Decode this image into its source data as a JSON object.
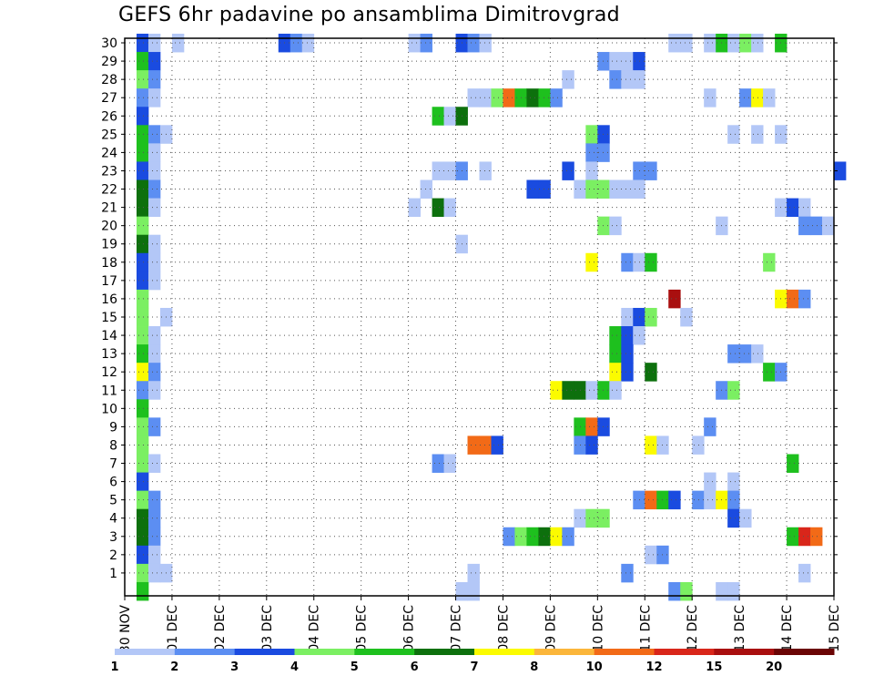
{
  "chart_data": {
    "type": "heatmap",
    "title": "GEFS 6hr padavine po ansamblima Dimitrovgrad",
    "xlabel": "",
    "ylabel": "",
    "ylim": [
      0,
      30
    ],
    "xlim": [
      0,
      15
    ],
    "x_ticks": [
      "30 NOV",
      "01 DEC",
      "02 DEC",
      "03 DEC",
      "04 DEC",
      "05 DEC",
      "06 DEC",
      "07 DEC",
      "08 DEC",
      "09 DEC",
      "10 DEC",
      "11 DEC",
      "12 DEC",
      "13 DEC",
      "14 DEC",
      "15 DEC"
    ],
    "y_ticks": [
      "1",
      "2",
      "3",
      "4",
      "5",
      "6",
      "7",
      "8",
      "9",
      "10",
      "11",
      "12",
      "13",
      "14",
      "15",
      "16",
      "17",
      "18",
      "19",
      "20",
      "21",
      "22",
      "23",
      "24",
      "25",
      "26",
      "27",
      "28",
      "29",
      "30"
    ],
    "grid": true,
    "legend": {
      "placement": "bottom",
      "labels": [
        "1",
        "2",
        "3",
        "4",
        "5",
        "6",
        "7",
        "8",
        "10",
        "12",
        "15",
        "20"
      ],
      "colors": [
        "#b3c7f7",
        "#5c8ef2",
        "#1a4be0",
        "#7bef62",
        "#1ec01e",
        "#0d700d",
        "#fbfb00",
        "#fbb63b",
        "#f26a17",
        "#d9261a",
        "#a90f0f",
        "#6b0505"
      ]
    },
    "cells_note": "each cell: [member 0-30, 6h step index from 30 NOV 00z, color level 1-12]",
    "cells": [
      [
        30,
        1,
        3
      ],
      [
        30,
        2,
        1
      ],
      [
        30,
        4,
        1
      ],
      [
        30,
        13,
        3
      ],
      [
        30,
        14,
        2
      ],
      [
        30,
        15,
        1
      ],
      [
        30,
        24,
        1
      ],
      [
        30,
        25,
        2
      ],
      [
        30,
        28,
        3
      ],
      [
        30,
        29,
        2
      ],
      [
        30,
        30,
        1
      ],
      [
        30,
        46,
        1
      ],
      [
        30,
        47,
        1
      ],
      [
        30,
        49,
        1
      ],
      [
        30,
        50,
        5
      ],
      [
        30,
        51,
        1
      ],
      [
        30,
        52,
        4
      ],
      [
        30,
        53,
        1
      ],
      [
        30,
        55,
        5
      ],
      [
        29,
        1,
        5
      ],
      [
        29,
        2,
        3
      ],
      [
        29,
        40,
        2
      ],
      [
        29,
        41,
        1
      ],
      [
        29,
        42,
        1
      ],
      [
        29,
        43,
        3
      ],
      [
        28,
        1,
        4
      ],
      [
        28,
        2,
        2
      ],
      [
        28,
        37,
        1
      ],
      [
        28,
        41,
        2
      ],
      [
        28,
        42,
        1
      ],
      [
        28,
        43,
        1
      ],
      [
        27,
        1,
        2
      ],
      [
        27,
        2,
        1
      ],
      [
        27,
        29,
        1
      ],
      [
        27,
        30,
        1
      ],
      [
        27,
        31,
        4
      ],
      [
        27,
        32,
        9
      ],
      [
        27,
        33,
        5
      ],
      [
        27,
        34,
        6
      ],
      [
        27,
        35,
        5
      ],
      [
        27,
        36,
        2
      ],
      [
        27,
        49,
        1
      ],
      [
        27,
        52,
        2
      ],
      [
        27,
        53,
        7
      ],
      [
        27,
        54,
        1
      ],
      [
        26,
        1,
        3
      ],
      [
        26,
        26,
        5
      ],
      [
        26,
        27,
        1
      ],
      [
        26,
        28,
        6
      ],
      [
        25,
        1,
        5
      ],
      [
        25,
        2,
        2
      ],
      [
        25,
        3,
        1
      ],
      [
        25,
        39,
        4
      ],
      [
        25,
        40,
        3
      ],
      [
        25,
        51,
        1
      ],
      [
        25,
        53,
        1
      ],
      [
        25,
        55,
        1
      ],
      [
        24,
        1,
        5
      ],
      [
        24,
        2,
        1
      ],
      [
        24,
        39,
        2
      ],
      [
        24,
        40,
        2
      ],
      [
        23,
        1,
        3
      ],
      [
        23,
        2,
        1
      ],
      [
        23,
        26,
        1
      ],
      [
        23,
        27,
        1
      ],
      [
        23,
        28,
        2
      ],
      [
        23,
        30,
        1
      ],
      [
        23,
        37,
        3
      ],
      [
        23,
        39,
        1
      ],
      [
        23,
        43,
        2
      ],
      [
        23,
        44,
        2
      ],
      [
        23,
        60,
        3
      ],
      [
        22,
        1,
        6
      ],
      [
        22,
        2,
        2
      ],
      [
        22,
        25,
        1
      ],
      [
        22,
        34,
        3
      ],
      [
        22,
        35,
        3
      ],
      [
        22,
        38,
        1
      ],
      [
        22,
        39,
        4
      ],
      [
        22,
        40,
        4
      ],
      [
        22,
        41,
        1
      ],
      [
        22,
        42,
        1
      ],
      [
        22,
        43,
        1
      ],
      [
        21,
        1,
        6
      ],
      [
        21,
        2,
        1
      ],
      [
        21,
        24,
        1
      ],
      [
        21,
        26,
        6
      ],
      [
        21,
        27,
        1
      ],
      [
        21,
        55,
        1
      ],
      [
        21,
        56,
        3
      ],
      [
        21,
        57,
        1
      ],
      [
        20,
        1,
        4
      ],
      [
        20,
        40,
        4
      ],
      [
        20,
        41,
        1
      ],
      [
        20,
        50,
        1
      ],
      [
        20,
        57,
        2
      ],
      [
        20,
        58,
        2
      ],
      [
        20,
        59,
        1
      ],
      [
        19,
        1,
        6
      ],
      [
        19,
        2,
        1
      ],
      [
        19,
        28,
        1
      ],
      [
        18,
        1,
        3
      ],
      [
        18,
        2,
        1
      ],
      [
        18,
        39,
        7
      ],
      [
        18,
        42,
        2
      ],
      [
        18,
        43,
        1
      ],
      [
        18,
        44,
        5
      ],
      [
        18,
        54,
        4
      ],
      [
        17,
        1,
        3
      ],
      [
        17,
        2,
        1
      ],
      [
        16,
        1,
        4
      ],
      [
        16,
        46,
        11
      ],
      [
        16,
        55,
        7
      ],
      [
        16,
        56,
        9
      ],
      [
        16,
        57,
        2
      ],
      [
        15,
        1,
        4
      ],
      [
        15,
        3,
        1
      ],
      [
        15,
        42,
        1
      ],
      [
        15,
        43,
        3
      ],
      [
        15,
        44,
        4
      ],
      [
        15,
        47,
        1
      ],
      [
        14,
        1,
        4
      ],
      [
        14,
        2,
        1
      ],
      [
        14,
        41,
        5
      ],
      [
        14,
        42,
        3
      ],
      [
        14,
        43,
        1
      ],
      [
        13,
        1,
        5
      ],
      [
        13,
        2,
        1
      ],
      [
        13,
        41,
        5
      ],
      [
        13,
        42,
        3
      ],
      [
        13,
        51,
        2
      ],
      [
        13,
        52,
        2
      ],
      [
        13,
        53,
        1
      ],
      [
        12,
        1,
        7
      ],
      [
        12,
        2,
        2
      ],
      [
        12,
        41,
        7
      ],
      [
        12,
        42,
        3
      ],
      [
        12,
        44,
        6
      ],
      [
        12,
        54,
        5
      ],
      [
        12,
        55,
        2
      ],
      [
        11,
        1,
        2
      ],
      [
        11,
        2,
        1
      ],
      [
        11,
        36,
        7
      ],
      [
        11,
        37,
        6
      ],
      [
        11,
        38,
        6
      ],
      [
        11,
        39,
        1
      ],
      [
        11,
        40,
        5
      ],
      [
        11,
        41,
        1
      ],
      [
        11,
        50,
        2
      ],
      [
        11,
        51,
        4
      ],
      [
        10,
        1,
        5
      ],
      [
        9,
        1,
        4
      ],
      [
        9,
        2,
        2
      ],
      [
        9,
        38,
        5
      ],
      [
        9,
        39,
        9
      ],
      [
        9,
        40,
        3
      ],
      [
        9,
        49,
        2
      ],
      [
        8,
        1,
        4
      ],
      [
        8,
        29,
        9
      ],
      [
        8,
        30,
        9
      ],
      [
        8,
        31,
        3
      ],
      [
        8,
        38,
        2
      ],
      [
        8,
        39,
        3
      ],
      [
        8,
        44,
        7
      ],
      [
        8,
        45,
        1
      ],
      [
        8,
        48,
        1
      ],
      [
        7,
        1,
        4
      ],
      [
        7,
        2,
        1
      ],
      [
        7,
        26,
        2
      ],
      [
        7,
        27,
        1
      ],
      [
        7,
        56,
        5
      ],
      [
        6,
        1,
        3
      ],
      [
        6,
        49,
        1
      ],
      [
        6,
        51,
        1
      ],
      [
        5,
        1,
        4
      ],
      [
        5,
        2,
        2
      ],
      [
        5,
        43,
        2
      ],
      [
        5,
        44,
        9
      ],
      [
        5,
        45,
        5
      ],
      [
        5,
        46,
        3
      ],
      [
        5,
        48,
        2
      ],
      [
        5,
        49,
        1
      ],
      [
        5,
        50,
        7
      ],
      [
        5,
        51,
        2
      ],
      [
        4,
        1,
        6
      ],
      [
        4,
        2,
        2
      ],
      [
        4,
        38,
        1
      ],
      [
        4,
        39,
        4
      ],
      [
        4,
        40,
        4
      ],
      [
        4,
        51,
        3
      ],
      [
        4,
        52,
        1
      ],
      [
        3,
        1,
        6
      ],
      [
        3,
        2,
        2
      ],
      [
        3,
        32,
        2
      ],
      [
        3,
        33,
        4
      ],
      [
        3,
        34,
        5
      ],
      [
        3,
        35,
        6
      ],
      [
        3,
        36,
        7
      ],
      [
        3,
        37,
        2
      ],
      [
        3,
        56,
        5
      ],
      [
        3,
        57,
        10
      ],
      [
        3,
        58,
        9
      ],
      [
        2,
        1,
        3
      ],
      [
        2,
        2,
        1
      ],
      [
        2,
        44,
        1
      ],
      [
        2,
        45,
        2
      ],
      [
        1,
        1,
        4
      ],
      [
        1,
        2,
        1
      ],
      [
        1,
        3,
        1
      ],
      [
        1,
        29,
        1
      ],
      [
        1,
        42,
        2
      ],
      [
        1,
        57,
        1
      ],
      [
        0,
        1,
        5
      ],
      [
        0,
        28,
        1
      ],
      [
        0,
        29,
        1
      ],
      [
        0,
        46,
        2
      ],
      [
        0,
        47,
        4
      ],
      [
        0,
        50,
        1
      ],
      [
        0,
        51,
        1
      ]
    ]
  }
}
